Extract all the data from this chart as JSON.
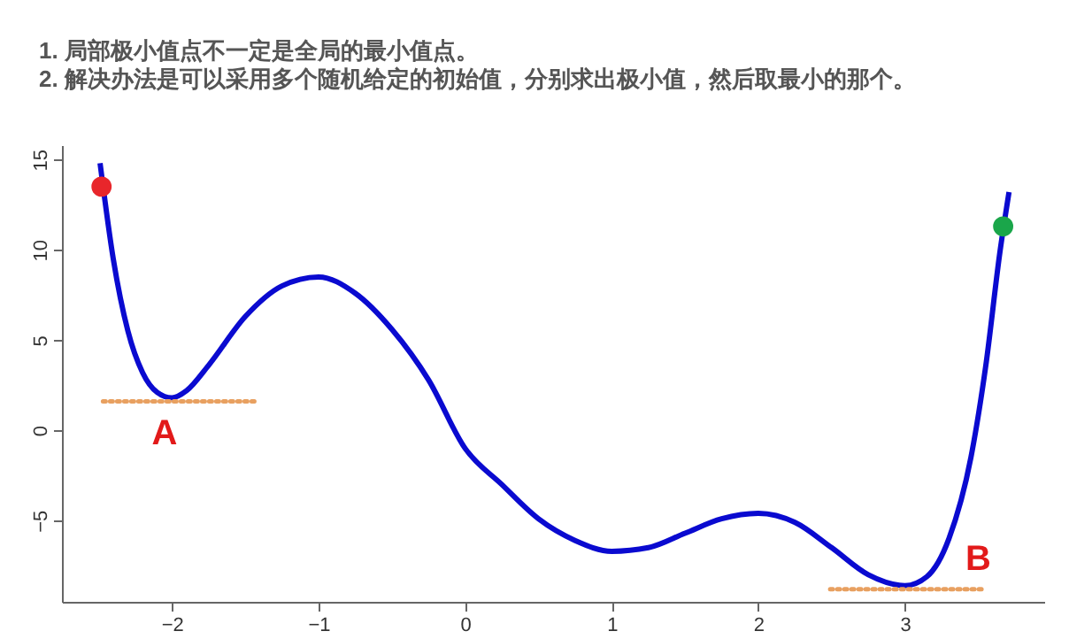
{
  "chart_data": {
    "type": "line",
    "title": "1. 局部极小值点不一定是全局的最小值点。",
    "subtitle": "2. 解决办法是可以采用多个随机给定的初始值，分别求出极小值，然后取最小的那个。",
    "xlim": [
      -2.75,
      3.95
    ],
    "ylim": [
      -9.5,
      15.8
    ],
    "xticks": [
      -2,
      -1,
      0,
      1,
      2,
      3
    ],
    "yticks": [
      -5,
      0,
      5,
      10,
      15
    ],
    "grid": false,
    "series": [
      {
        "type": "line",
        "color": "#0a0ad0",
        "line_style": "solid",
        "marker": "none",
        "x": [
          -2.49,
          -2.4,
          -2.3,
          -2.2,
          -2.1,
          -2,
          -1.9,
          -1.75,
          -1.5,
          -1.25,
          -1,
          -0.75,
          -0.5,
          -0.25,
          0,
          0.25,
          0.5,
          0.75,
          1,
          1.25,
          1.5,
          1.75,
          2,
          2.25,
          2.5,
          2.75,
          3,
          3.15,
          3.3,
          3.45,
          3.55,
          3.65,
          3.71
        ],
        "values": [
          14.8,
          9.5,
          5.5,
          3.2,
          2.1,
          1.8,
          2.2,
          3.6,
          6.3,
          8.0,
          8.5,
          7.6,
          5.6,
          2.8,
          -1.0,
          -3.0,
          -4.9,
          -6.1,
          -6.7,
          -6.5,
          -5.7,
          -4.9,
          -4.6,
          -5.1,
          -6.5,
          -8.0,
          -8.6,
          -8.1,
          -6.0,
          -1.5,
          3.5,
          10,
          13.2
        ]
      },
      {
        "type": "line",
        "color": "#e8a060",
        "line_style": "dotted",
        "marker": "none",
        "x": [
          -2.47,
          -1.41
        ],
        "values": [
          1.6,
          1.6
        ]
      },
      {
        "type": "line",
        "color": "#e8a060",
        "line_style": "dotted",
        "marker": "none",
        "x": [
          2.49,
          3.55
        ],
        "values": [
          -8.8,
          -8.8
        ]
      },
      {
        "type": "scatter",
        "color": "#e8262b",
        "marker": "circle",
        "x": [
          -2.48
        ],
        "values": [
          13.5
        ]
      },
      {
        "type": "scatter",
        "color": "#1aa64a",
        "marker": "circle",
        "x": [
          3.67
        ],
        "values": [
          11.3
        ]
      }
    ],
    "annotations": [
      {
        "text": "A",
        "x": -2.05,
        "y": 1.6
      },
      {
        "text": "B",
        "x": 3.5,
        "y": -8.8
      }
    ]
  }
}
